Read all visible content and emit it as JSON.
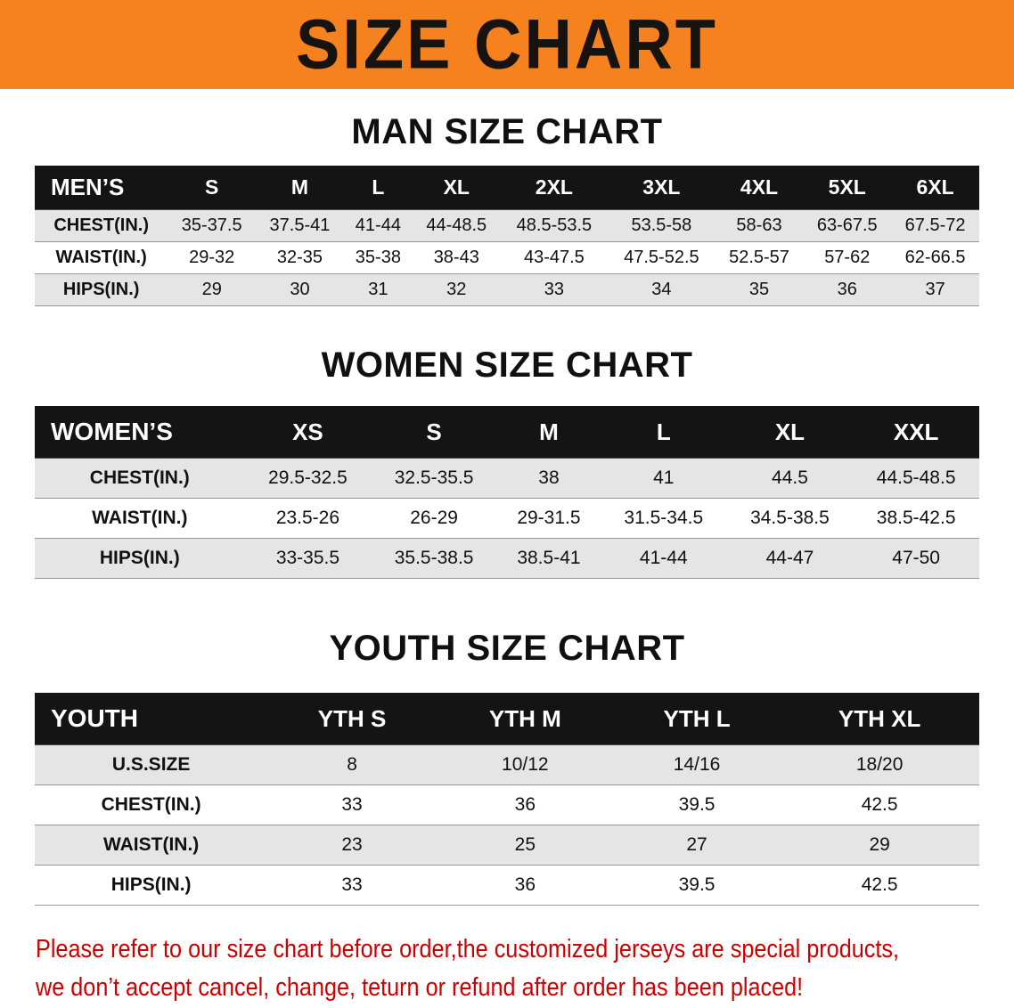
{
  "banner": {
    "title": "SIZE CHART",
    "bg_color": "#F5821F",
    "text_color": "#171310"
  },
  "sections": [
    {
      "heading": "MAN SIZE CHART",
      "table": {
        "header": [
          "MEN’S",
          "S",
          "M",
          "L",
          "XL",
          "2XL",
          "3XL",
          "4XL",
          "5XL",
          "6XL"
        ],
        "rows": [
          [
            "CHEST(IN.)",
            "35-37.5",
            "37.5-41",
            "41-44",
            "44-48.5",
            "48.5-53.5",
            "53.5-58",
            "58-63",
            "63-67.5",
            "67.5-72"
          ],
          [
            "WAIST(IN.)",
            "29-32",
            "32-35",
            "35-38",
            "38-43",
            "43-47.5",
            "47.5-52.5",
            "52.5-57",
            "57-62",
            "62-66.5"
          ],
          [
            "HIPS(IN.)",
            "29",
            "30",
            "31",
            "32",
            "33",
            "34",
            "35",
            "36",
            "37"
          ]
        ]
      }
    },
    {
      "heading": "WOMEN SIZE CHART",
      "table": {
        "header": [
          "WOMEN’S",
          "XS",
          "S",
          "M",
          "L",
          "XL",
          "XXL"
        ],
        "rows": [
          [
            "CHEST(IN.)",
            "29.5-32.5",
            "32.5-35.5",
            "38",
            "41",
            "44.5",
            "44.5-48.5"
          ],
          [
            "WAIST(IN.)",
            "23.5-26",
            "26-29",
            "29-31.5",
            "31.5-34.5",
            "34.5-38.5",
            "38.5-42.5"
          ],
          [
            "HIPS(IN.)",
            "33-35.5",
            "35.5-38.5",
            "38.5-41",
            "41-44",
            "44-47",
            "47-50"
          ]
        ]
      }
    },
    {
      "heading": "YOUTH SIZE CHART",
      "table": {
        "header": [
          "YOUTH",
          "YTH S",
          "YTH M",
          "YTH L",
          "YTH XL"
        ],
        "rows": [
          [
            "U.S.SIZE",
            "8",
            "10/12",
            "14/16",
            "18/20"
          ],
          [
            "CHEST(IN.)",
            "33",
            "36",
            "39.5",
            "42.5"
          ],
          [
            "WAIST(IN.)",
            "23",
            "25",
            "27",
            "29"
          ],
          [
            "HIPS(IN.)",
            "33",
            "36",
            "39.5",
            "42.5"
          ]
        ]
      }
    }
  ],
  "footer": {
    "line1": "Please refer to our size chart before order,the customized jerseys are special products,",
    "line2": "we don’t accept cancel, change, teturn or refund after order has been placed!",
    "text_color": "#CC0000"
  }
}
